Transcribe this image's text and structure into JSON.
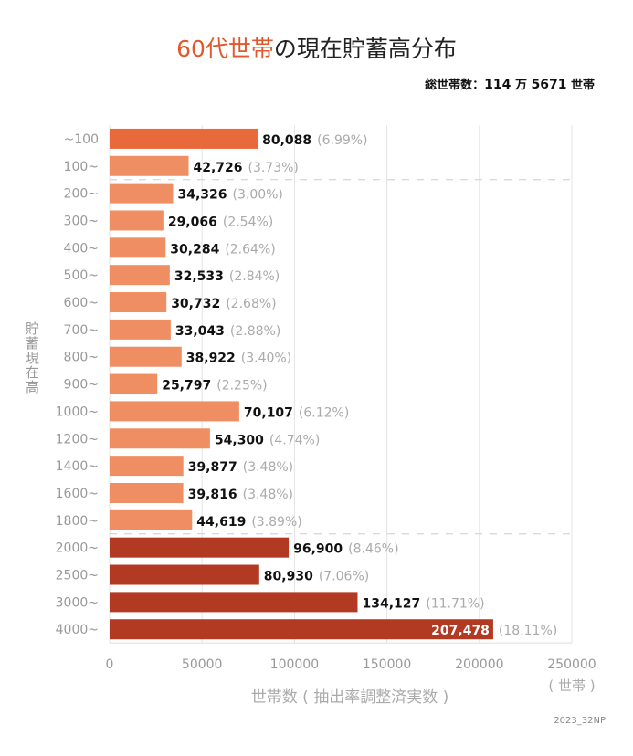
{
  "chart_data": {
    "type": "bar",
    "orientation": "horizontal",
    "title_highlight": "60代世帯",
    "title_rest": "の現在貯蓄高分布",
    "total": {
      "label": "総世帯数：",
      "man": "114",
      "man_unit": "万",
      "rest": "5671",
      "unit": "世帯"
    },
    "ylabel": "貯蓄現在高",
    "xlabel": "世帯数 ( 抽出率調整済実数 )",
    "xunit": "( 世帯 )",
    "xlim": [
      0,
      250000
    ],
    "xticks": [
      "0",
      "50000",
      "100000",
      "150000",
      "200000",
      "250000"
    ],
    "grid": true,
    "categories": [
      "~100",
      "100~",
      "200~",
      "300~",
      "400~",
      "500~",
      "600~",
      "700~",
      "800~",
      "900~",
      "1000~",
      "1200~",
      "1400~",
      "1600~",
      "1800~",
      "2000~",
      "2500~",
      "3000~",
      "4000~"
    ],
    "values": [
      80088,
      42726,
      34326,
      29066,
      30284,
      32533,
      30732,
      33043,
      38922,
      25797,
      70107,
      54300,
      39877,
      39816,
      44619,
      96900,
      80930,
      134127,
      207478
    ],
    "value_labels": [
      "80,088",
      "42,726",
      "34,326",
      "29,066",
      "30,284",
      "32,533",
      "30,732",
      "33,043",
      "38,922",
      "25,797",
      "70,107",
      "54,300",
      "39,877",
      "39,816",
      "44,619",
      "96,900",
      "80,930",
      "134,127",
      "207,478"
    ],
    "percent_labels": [
      "(6.99%)",
      "(3.73%)",
      "(3.00%)",
      "(2.54%)",
      "(2.64%)",
      "(2.84%)",
      "(2.68%)",
      "(2.88%)",
      "(3.40%)",
      "(2.25%)",
      "(6.12%)",
      "(4.74%)",
      "(3.48%)",
      "(3.48%)",
      "(3.89%)",
      "(8.46%)",
      "(7.06%)",
      "(11.71%)",
      "(18.11%)"
    ],
    "colors": {
      "first": "#E8693A",
      "middle": "#F08E63",
      "high": "#B33A22"
    },
    "group_breaks_after": [
      "100~",
      "1800~"
    ]
  },
  "credit": "2023_32NP"
}
